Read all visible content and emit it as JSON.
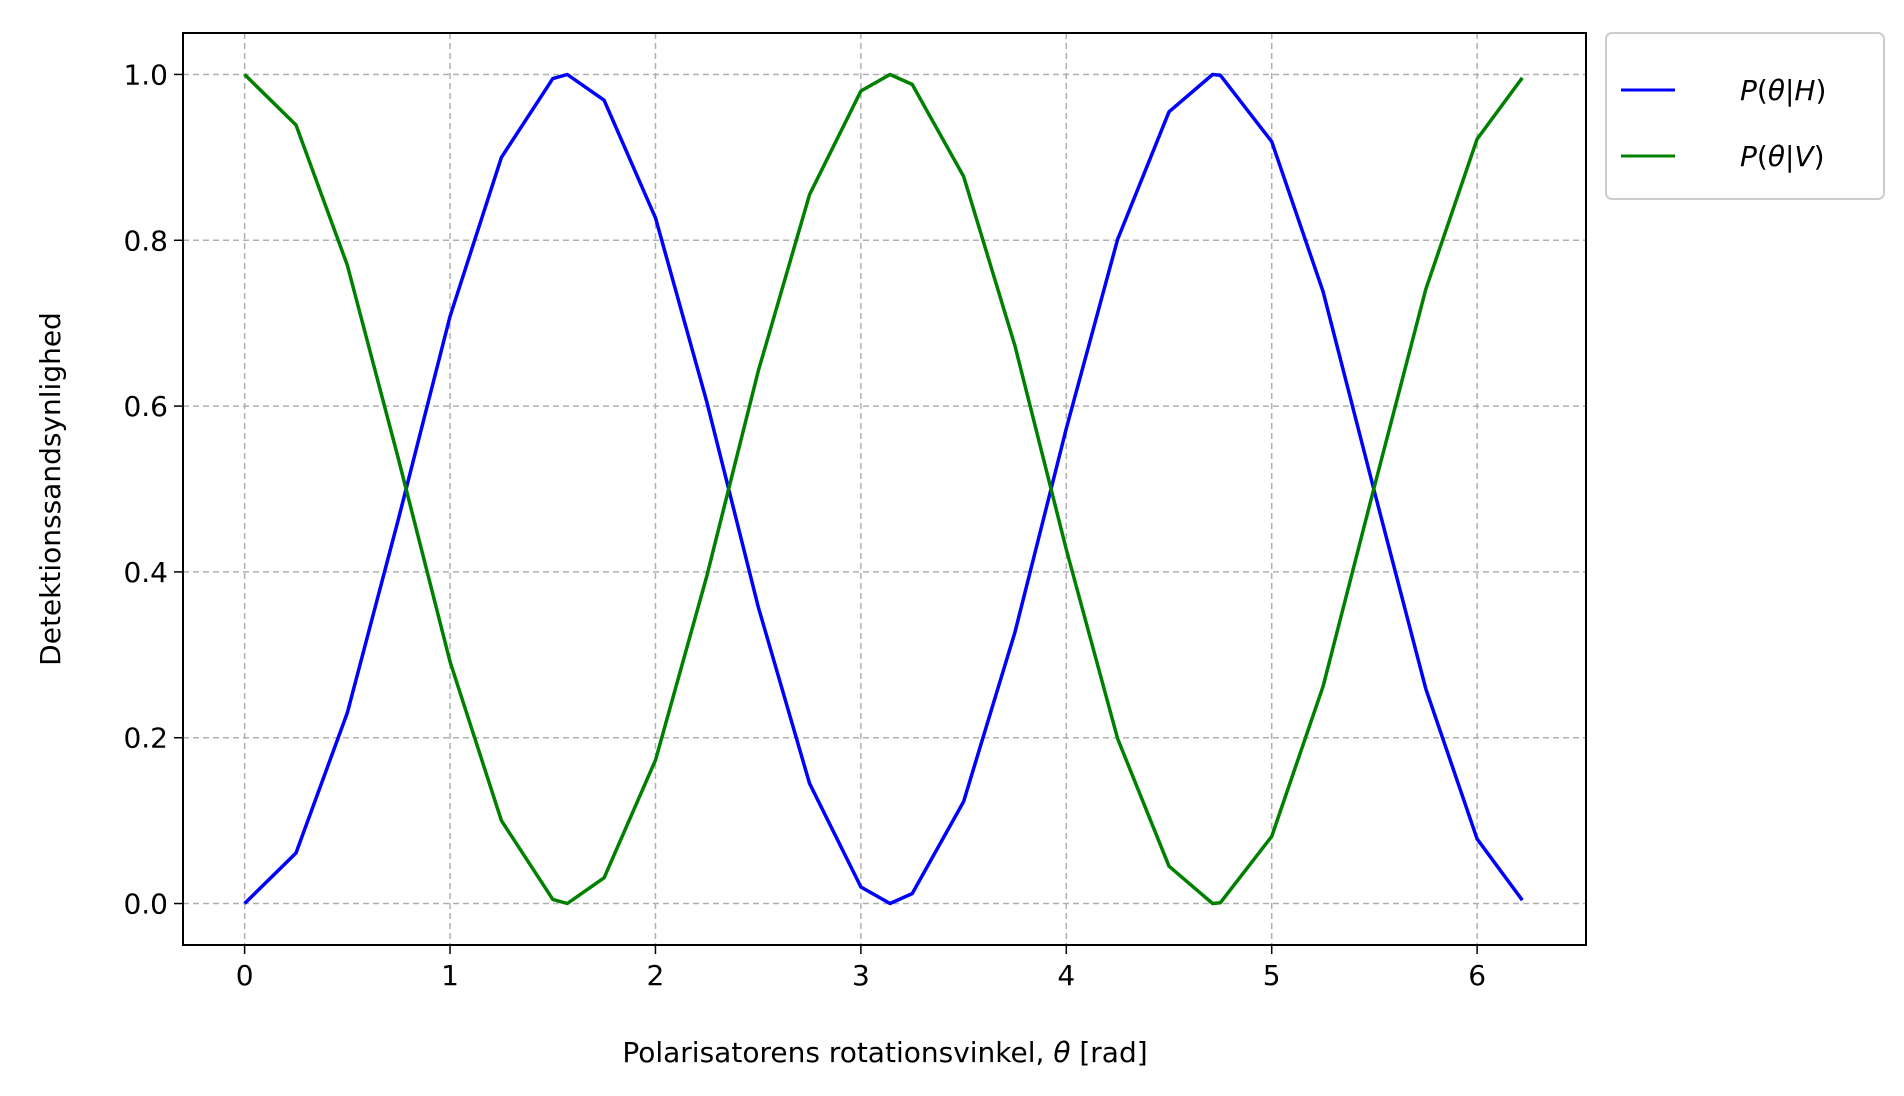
{
  "chart_data": {
    "type": "line",
    "title": "",
    "xlabel_prefix": "Polarisatorens rotationsvinkel, ",
    "xlabel_symbol": "θ",
    "xlabel_suffix": " [rad]",
    "ylabel": "Detektionssandsynlighed",
    "xlim": [
      -0.3,
      6.53
    ],
    "ylim": [
      -0.05,
      1.05
    ],
    "x_ticks": [
      0,
      1,
      2,
      3,
      4,
      5,
      6
    ],
    "x_tick_labels": [
      "0",
      "1",
      "2",
      "3",
      "4",
      "5",
      "6"
    ],
    "y_ticks": [
      0.0,
      0.2,
      0.4,
      0.6,
      0.8,
      1.0
    ],
    "y_tick_labels": [
      "0.0",
      "0.2",
      "0.4",
      "0.6",
      "0.8",
      "1.0"
    ],
    "grid": true,
    "grid_style": "dashed",
    "legend_placement": "outside-top-right",
    "x": [
      0,
      0.25,
      0.5,
      0.75,
      1.0,
      1.25,
      1.5,
      1.5708,
      1.75,
      2.0,
      2.25,
      2.5,
      2.75,
      3.0,
      3.1416,
      3.25,
      3.5,
      3.75,
      4.0,
      4.25,
      4.5,
      4.7124,
      4.75,
      5.0,
      5.25,
      5.5,
      5.75,
      6.0,
      6.22
    ],
    "series": [
      {
        "name_base": "P",
        "name_open": "(",
        "name_theta": "θ",
        "name_bar": "|",
        "name_given": "H",
        "name_close": ")",
        "color": "#0000ff",
        "values": [
          0.0,
          0.061,
          0.23,
          0.465,
          0.708,
          0.9,
          0.995,
          1.0,
          0.969,
          0.827,
          0.605,
          0.358,
          0.145,
          0.02,
          0.0,
          0.012,
          0.123,
          0.327,
          0.573,
          0.801,
          0.955,
          1.0,
          0.999,
          0.919,
          0.738,
          0.497,
          0.259,
          0.078,
          0.004
        ]
      },
      {
        "name_base": "P",
        "name_open": "(",
        "name_theta": "θ",
        "name_bar": "|",
        "name_given": "V",
        "name_close": ")",
        "color": "#008000",
        "values": [
          1.0,
          0.939,
          0.77,
          0.535,
          0.292,
          0.1,
          0.005,
          0.0,
          0.031,
          0.173,
          0.395,
          0.642,
          0.855,
          0.98,
          1.0,
          0.988,
          0.877,
          0.673,
          0.427,
          0.199,
          0.045,
          0.0,
          0.001,
          0.081,
          0.262,
          0.503,
          0.741,
          0.922,
          0.996
        ]
      }
    ]
  }
}
